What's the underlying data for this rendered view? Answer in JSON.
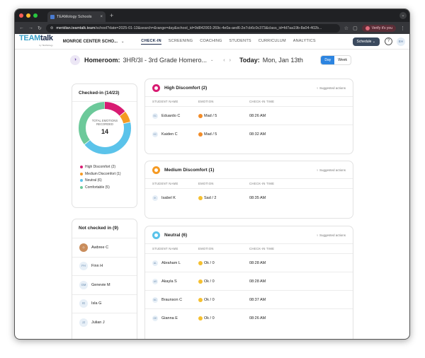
{
  "browser": {
    "tab_title": "TEAMology Schools",
    "url_host": "meridian.teamtalk.team",
    "url_path": "/school?date=2025-01-13&search=&range=day&school_id=9d842003-269c-4e0a-aed6-2e7cb6c0c373&class_id=fd7aa19b-8a04-402b...",
    "verify_label": "Verify it's you"
  },
  "app": {
    "logo_team": "TEAM",
    "logo_talk": "talk",
    "logo_sub": "by TEAMology",
    "school": "MONROE CENTER SCHO...",
    "nav": [
      "CHECK-IN",
      "SCREENING",
      "COACHING",
      "STUDENTS",
      "CURRICULUM",
      "ANALYTICS"
    ],
    "schedule_label": "Schedule",
    "user_initials": "EH"
  },
  "homeroom": {
    "label": "Homeroom:",
    "value": "3HR/3I - 3rd Grade Homero...",
    "today_label": "Today:",
    "date": "Mon, Jan 13th",
    "day_label": "Day",
    "week_label": "Week"
  },
  "checked_in": {
    "title": "Checked-in (14/23)",
    "donut_label_line1": "TOTAL EMOTIONS",
    "donut_label_line2": "RECORDED",
    "total": "14",
    "segments": [
      {
        "label": "High Discomfort (2)",
        "value": 2,
        "color": "#d81b72"
      },
      {
        "label": "Medium Discomfort (1)",
        "value": 1,
        "color": "#f59a23"
      },
      {
        "label": "Neutral (6)",
        "value": 6,
        "color": "#5bc3ea"
      },
      {
        "label": "Comfortable (5)",
        "value": 5,
        "color": "#6cc99a"
      }
    ]
  },
  "not_checked": {
    "title": "Not checked in (9)",
    "students": [
      {
        "name": "Awbree C",
        "initials": ""
      },
      {
        "name": "Finn H",
        "initials": "FH"
      },
      {
        "name": "Genevie M",
        "initials": "GM"
      },
      {
        "name": "Isla G",
        "initials": "IG"
      },
      {
        "name": "Julian J",
        "initials": "JJ"
      }
    ]
  },
  "table_headers": {
    "student": "STUDENT NAME",
    "emotion": "EMOTION",
    "time": "CHECK-IN TIME"
  },
  "suggested_label": "Suggested actions",
  "groups": [
    {
      "title": "High Discomfort (2)",
      "color": "#d81b72",
      "rows": [
        {
          "initials": "EC",
          "name": "Eduardo C",
          "emotion": "Mad / 5",
          "emoji_color": "#f28c28",
          "time": "08:26 AM"
        },
        {
          "initials": "KC",
          "name": "Kaiden C",
          "emotion": "Mad / 5",
          "emoji_color": "#f28c28",
          "time": "08:32 AM"
        }
      ]
    },
    {
      "title": "Medium Discomfort (1)",
      "color": "#f59a23",
      "rows": [
        {
          "initials": "IK",
          "name": "Isabel K",
          "emotion": "Sad / 2",
          "emoji_color": "#f5c030",
          "time": "08:35 AM"
        }
      ]
    },
    {
      "title": "Neutral (6)",
      "color": "#5bc3ea",
      "rows": [
        {
          "initials": "AL",
          "name": "Abraham L",
          "emotion": "Ok / 0",
          "emoji_color": "#f5c030",
          "time": "08:28 AM"
        },
        {
          "initials": "AS",
          "name": "Akayla S",
          "emotion": "Ok / 0",
          "emoji_color": "#f5c030",
          "time": "08:28 AM"
        },
        {
          "initials": "BC",
          "name": "Braunson C",
          "emotion": "Ok / 0",
          "emoji_color": "#f5c030",
          "time": "08:37 AM"
        },
        {
          "initials": "GE",
          "name": "Gianna E",
          "emotion": "Ok / 0",
          "emoji_color": "#f5c030",
          "time": "08:26 AM"
        }
      ]
    }
  ]
}
